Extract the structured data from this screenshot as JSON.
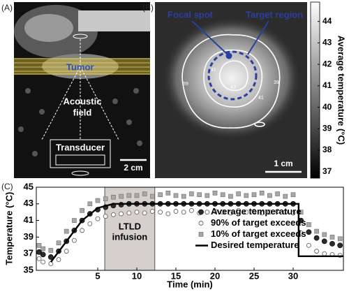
{
  "panel_a": {
    "label": "(A)",
    "tumor": "Tumor",
    "field": [
      "Acoustic",
      "field"
    ],
    "transducer": "Transducer",
    "scale": "2 cm"
  },
  "panel_b": {
    "label": "(B)",
    "focal": "Focal spot",
    "target": "Target region",
    "scale": "1 cm",
    "contours": [
      "39",
      "41",
      "43",
      "41",
      "39"
    ],
    "colorbar": {
      "label": "Average temperature (°C)",
      "lim": [
        36.7,
        44.9
      ],
      "ticks": [
        37,
        38,
        39,
        40,
        41,
        42,
        43,
        44
      ]
    }
  },
  "chart_data": {
    "type": "line",
    "label": "(C)",
    "xlabel": "Time (min)",
    "ylabel": "Temperature (°C)",
    "annotation": [
      "LTLD",
      "infusion"
    ],
    "shade": [
      5.9,
      12.3
    ],
    "legend": "center right",
    "xlim": [
      -2.86,
      36.43
    ],
    "xticks": [
      5,
      10,
      15,
      20,
      25,
      30
    ],
    "ylim": [
      35,
      45
    ],
    "yticks": [
      35,
      37,
      39,
      41,
      43,
      45
    ],
    "x": [
      -2.5,
      -2,
      -1,
      0,
      1,
      2,
      3,
      4,
      5,
      6,
      7,
      8,
      9,
      10,
      11,
      12,
      13,
      14,
      15,
      16,
      17,
      18,
      19,
      20,
      21,
      22,
      23,
      24,
      25,
      26,
      27,
      28,
      29,
      30,
      31,
      32,
      33,
      34,
      35,
      36
    ],
    "series": [
      {
        "name": "Average temperature",
        "color": "#2b2b2b",
        "marker": "circle",
        "values": [
          37.2,
          36.9,
          36.6,
          37.3,
          38.5,
          39.8,
          41,
          41.8,
          42.3,
          42.6,
          42.8,
          42.9,
          43,
          43,
          43,
          43,
          43,
          43,
          43,
          43,
          43,
          43,
          43,
          43,
          43,
          43,
          43,
          43,
          43,
          43,
          43,
          43,
          43,
          43,
          41,
          39.6,
          38.9,
          38.5,
          38.2,
          38
        ]
      },
      {
        "name": "90% of target exceeds",
        "color": "#666666",
        "marker": "open-circle",
        "values": [
          36.4,
          36,
          35.8,
          36.3,
          37.3,
          38.6,
          39.8,
          40.6,
          41.2,
          41.5,
          41.7,
          41.8,
          41.9,
          42,
          41.9,
          42.1,
          42,
          41.8,
          42.1,
          42,
          42.2,
          41.9,
          42,
          42.1,
          42,
          41.9,
          42.2,
          42,
          42.1,
          41.9,
          42,
          42.1,
          42,
          41.9,
          39.5,
          38,
          37.3,
          37,
          36.9,
          36.8
        ]
      },
      {
        "name": "10% of target exceeds",
        "color": "#a8a8a8",
        "marker": "square",
        "values": [
          38,
          37.6,
          37.4,
          38.3,
          39.7,
          41,
          42.2,
          43,
          43.4,
          43.6,
          43.8,
          43.9,
          44,
          44,
          44.2,
          43.9,
          44.1,
          44.3,
          44,
          43.9,
          44.2,
          44.1,
          44,
          44.3,
          44.1,
          43.9,
          44.2,
          44,
          44.1,
          44.3,
          44,
          44.2,
          43.9,
          44.1,
          42,
          40.5,
          39.7,
          39.3,
          39,
          38.8
        ]
      },
      {
        "name": "Desired temperature",
        "color": "#000000",
        "marker": "line",
        "x": [
          -1,
          1,
          3,
          5,
          7,
          30.7,
          30.7,
          36.43
        ],
        "values": [
          36,
          38.5,
          41,
          42.5,
          43,
          43,
          36.7,
          36.7
        ]
      }
    ]
  }
}
